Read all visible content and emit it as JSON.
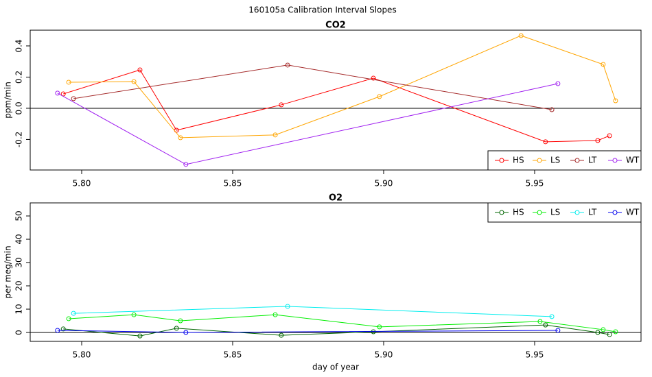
{
  "title": "160105a   Calibration Interval Slopes",
  "chart_data": [
    {
      "type": "line",
      "title": "CO2",
      "ylabel": "ppm/min",
      "xlim": [
        5.78295,
        5.98523
      ],
      "ylim": [
        -0.396,
        0.501
      ],
      "xticks": [
        {
          "value": 5.8,
          "label": "5.80"
        },
        {
          "value": 5.85,
          "label": "5.85"
        },
        {
          "value": 5.9,
          "label": "5.90"
        },
        {
          "value": 5.95,
          "label": "5.95"
        }
      ],
      "yticks": [
        -0.2,
        {
          "value": 0,
          "label": "0.0"
        },
        0.2,
        0.4
      ],
      "hline": 0,
      "legend": "bottomright",
      "series": [
        {
          "name": "HS",
          "color": "#ff0000",
          "x": [
            5.7939,
            5.8193,
            5.8314,
            5.8661,
            5.8966,
            5.9536,
            5.9709,
            5.9748
          ],
          "values": [
            0.092,
            0.246,
            -0.141,
            0.022,
            0.193,
            -0.215,
            -0.207,
            -0.176
          ]
        },
        {
          "name": "LS",
          "color": "#ffa500",
          "x": [
            5.7957,
            5.8173,
            5.8327,
            5.8641,
            5.8986,
            5.9455,
            5.9727,
            5.9768
          ],
          "values": [
            0.167,
            0.171,
            -0.189,
            -0.171,
            0.075,
            0.466,
            0.281,
            0.048
          ]
        },
        {
          "name": "LT",
          "color": "#a52a2a",
          "x": [
            5.7973,
            5.8682,
            5.9557
          ],
          "values": [
            0.062,
            0.277,
            -0.009
          ]
        },
        {
          "name": "WT",
          "color": "#a020f0",
          "x": [
            5.792,
            5.8345,
            5.9577
          ],
          "values": [
            0.097,
            -0.36,
            0.158
          ]
        }
      ]
    },
    {
      "type": "line",
      "title": "O2",
      "ylabel": "per meg/min",
      "xlabel": "day of year",
      "xlim": [
        5.78295,
        5.98523
      ],
      "ylim": [
        -3.82,
        55.6
      ],
      "xticks": [
        {
          "value": 5.8,
          "label": "5.80"
        },
        {
          "value": 5.85,
          "label": "5.85"
        },
        {
          "value": 5.9,
          "label": "5.90"
        },
        {
          "value": 5.95,
          "label": "5.95"
        }
      ],
      "yticks": [
        0,
        10,
        20,
        30,
        40,
        50
      ],
      "hline": 0,
      "legend": "topright",
      "series": [
        {
          "name": "HS",
          "color": "#006400",
          "x": [
            5.7939,
            5.8193,
            5.8314,
            5.8661,
            5.8966,
            5.9536,
            5.9709,
            5.9748
          ],
          "values": [
            1.5,
            -1.5,
            1.8,
            -1.2,
            0.3,
            3.2,
            0,
            -0.9
          ]
        },
        {
          "name": "LS",
          "color": "#00ee00",
          "x": [
            5.7957,
            5.8173,
            5.8327,
            5.8641,
            5.8986,
            5.9518,
            5.9727,
            5.9768
          ],
          "values": [
            5.9,
            7.6,
            5.0,
            7.6,
            2.4,
            4.7,
            1.2,
            0.3
          ]
        },
        {
          "name": "LT",
          "color": "#00eeee",
          "x": [
            5.7973,
            5.8682,
            5.9557
          ],
          "values": [
            8.2,
            11.2,
            6.8
          ]
        },
        {
          "name": "WT",
          "color": "#0000ee",
          "x": [
            5.792,
            5.8345,
            5.9577
          ],
          "values": [
            0.9,
            0,
            0.9
          ]
        }
      ]
    }
  ]
}
